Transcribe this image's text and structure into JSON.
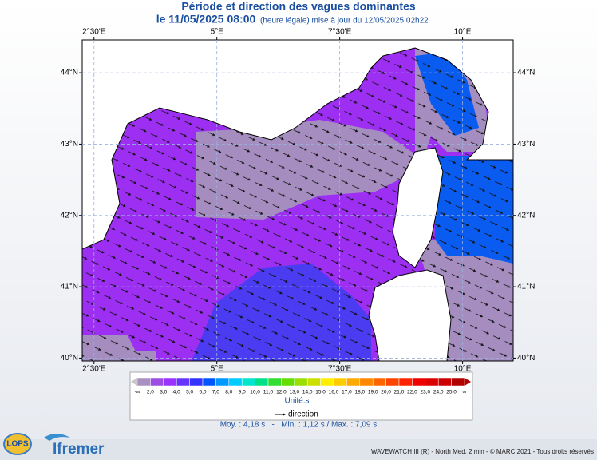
{
  "header": {
    "title": "Période et direction des vagues dominantes",
    "date": "le 11/05/2025 08:00",
    "update": "(heure légale) mise à jour du 12/05/2025 02h22"
  },
  "map": {
    "lon_range": [
      2.26,
      11.03
    ],
    "lat_range": [
      39.96,
      44.46
    ],
    "lon_ticks": [
      {
        "value": 2.5,
        "label": "2°30'E"
      },
      {
        "value": 5,
        "label": "5°E"
      },
      {
        "value": 7.5,
        "label": "7°30'E"
      },
      {
        "value": 10,
        "label": "10°E"
      }
    ],
    "lat_ticks": [
      {
        "value": 44,
        "label": "44°N"
      },
      {
        "value": 43,
        "label": "43°N"
      },
      {
        "value": 42,
        "label": "42°N"
      },
      {
        "value": 41,
        "label": "41°N"
      },
      {
        "value": 40,
        "label": "40°N"
      }
    ]
  },
  "legend": {
    "colors": [
      "#a890c0",
      "#9a4de0",
      "#9933ff",
      "#6633ff",
      "#3333ff",
      "#0055ff",
      "#0099ff",
      "#00ccff",
      "#00e5cc",
      "#00e08a",
      "#33dd33",
      "#66dd00",
      "#99e000",
      "#cce000",
      "#ffee00",
      "#ffcc00",
      "#ffaa00",
      "#ff8800",
      "#ff6600",
      "#ff4400",
      "#ff2200",
      "#ee0000",
      "#dd0000",
      "#cc0000",
      "#b00000"
    ],
    "labels": [
      "-∞",
      "2,0",
      "3,0",
      "4,0",
      "5,0",
      "6,0",
      "7,0",
      "8,0",
      "9,0",
      "10,0",
      "11,0",
      "12,0",
      "13,0",
      "14,0",
      "15,0",
      "16,0",
      "17,0",
      "18,0",
      "19,0",
      "20,0",
      "21,0",
      "22,0",
      "23,0",
      "24,0",
      "25,0",
      "∞"
    ],
    "unit": "Unité:s",
    "direction": "direction"
  },
  "stats": "Moy. : 4,18 s   -   Min. : 1,12 s / Max. : 7,09 s",
  "footer": {
    "credit": "WAVEWATCH III (R) - North Med. 2 min - © MARC 2021 - Tous droits réservés",
    "logos": [
      "LOPS",
      "Ifremer"
    ]
  }
}
